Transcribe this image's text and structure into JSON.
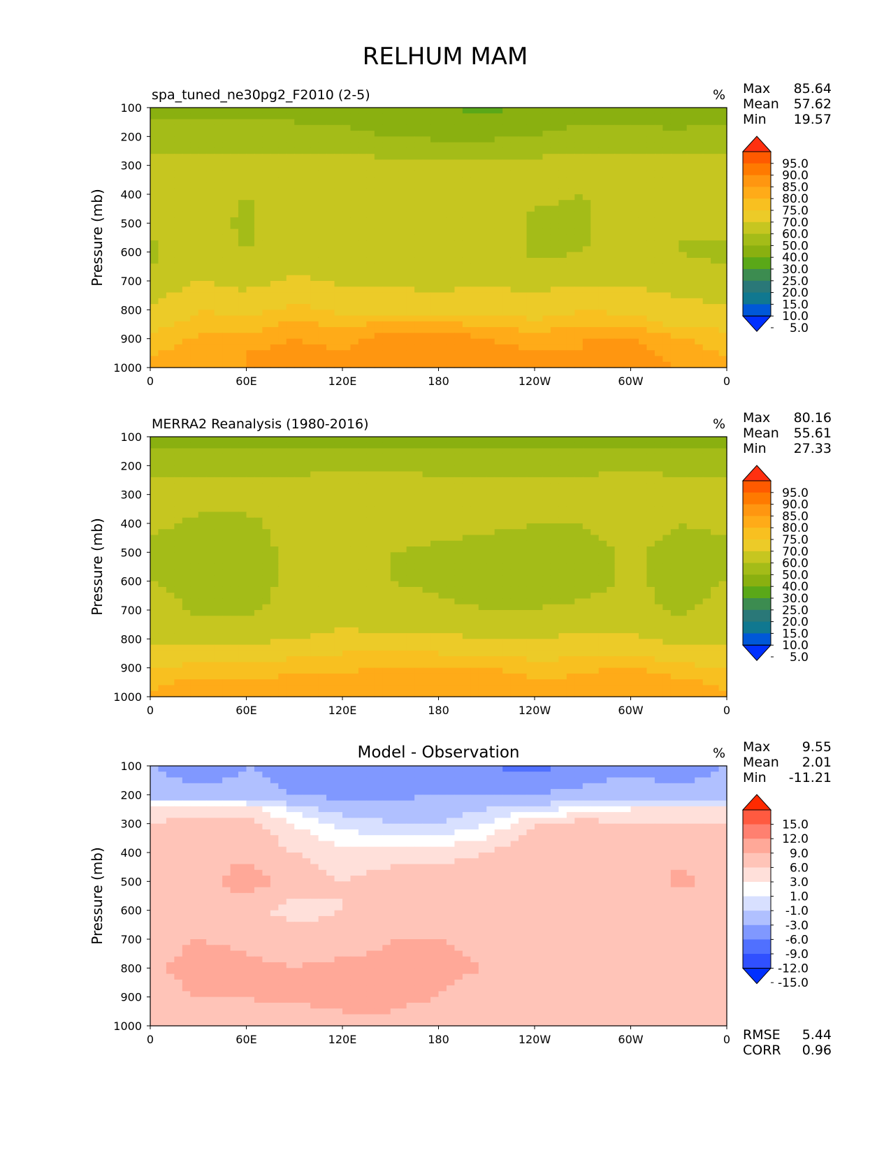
{
  "figure_title": "RELHUM MAM",
  "chart_data": [
    {
      "type": "heatmap",
      "title": "spa_tuned_ne30pg2_F2010 (2-5)",
      "units": "%",
      "ylabel": "Pressure (mb)",
      "xlabel": "",
      "x_ticks": [
        "0",
        "60E",
        "120E",
        "180",
        "120W",
        "60W",
        "0"
      ],
      "y_ticks": [
        "100",
        "200",
        "300",
        "400",
        "500",
        "600",
        "700",
        "800",
        "900",
        "1000"
      ],
      "x_range_deg": [
        0,
        360
      ],
      "y_range_mb": [
        100,
        1000
      ],
      "stats": [
        {
          "label": "Max",
          "value": "85.64"
        },
        {
          "label": "Mean",
          "value": "57.62"
        },
        {
          "label": "Min",
          "value": "19.57"
        }
      ],
      "colorbar": {
        "levels": [
          "95.0",
          "90.0",
          "85.0",
          "80.0",
          "75.0",
          "70.0",
          "60.0",
          "50.0",
          "40.0",
          "30.0",
          "25.0",
          "20.0",
          "15.0",
          "10.0",
          "5.0"
        ],
        "colors": [
          "#ff3010",
          "#ff5a00",
          "#ff7a00",
          "#ff9610",
          "#ffab18",
          "#f8c020",
          "#eccb28",
          "#c6c620",
          "#a4bc18",
          "#8ab010",
          "#5aa818",
          "#3c8c50",
          "#2a7878",
          "#107890",
          "#0058d8",
          "#0030ff"
        ]
      },
      "profile_mb": [
        100,
        200,
        300,
        400,
        500,
        600,
        700,
        800,
        850,
        900,
        950,
        1000
      ],
      "columns": [
        {
          "lon": 0,
          "rh": [
            36,
            44,
            54,
            58,
            52,
            48,
            52,
            62,
            68,
            72,
            74,
            76
          ]
        },
        {
          "lon": 30,
          "rh": [
            36,
            44,
            54,
            56,
            55,
            56,
            60,
            70,
            72,
            76,
            78,
            80
          ]
        },
        {
          "lon": 60,
          "rh": [
            36,
            44,
            54,
            50,
            48,
            50,
            56,
            68,
            72,
            76,
            80,
            80
          ]
        },
        {
          "lon": 90,
          "rh": [
            36,
            44,
            54,
            56,
            56,
            56,
            62,
            72,
            76,
            80,
            82,
            82
          ]
        },
        {
          "lon": 120,
          "rh": [
            36,
            42,
            54,
            56,
            56,
            56,
            58,
            68,
            74,
            78,
            80,
            82
          ]
        },
        {
          "lon": 150,
          "rh": [
            34,
            40,
            54,
            56,
            56,
            56,
            58,
            66,
            76,
            83,
            84,
            84
          ]
        },
        {
          "lon": 180,
          "rh": [
            30,
            38,
            54,
            56,
            56,
            56,
            56,
            68,
            76,
            85,
            84,
            84
          ]
        },
        {
          "lon": 210,
          "rh": [
            28,
            38,
            54,
            56,
            56,
            56,
            58,
            68,
            74,
            80,
            82,
            82
          ]
        },
        {
          "lon": 240,
          "rh": [
            32,
            40,
            54,
            52,
            48,
            48,
            56,
            66,
            72,
            78,
            80,
            80
          ]
        },
        {
          "lon": 270,
          "rh": [
            36,
            44,
            54,
            50,
            48,
            50,
            58,
            70,
            74,
            80,
            80,
            82
          ]
        },
        {
          "lon": 300,
          "rh": [
            32,
            44,
            54,
            56,
            56,
            56,
            58,
            68,
            74,
            80,
            82,
            82
          ]
        },
        {
          "lon": 330,
          "rh": [
            30,
            44,
            54,
            52,
            50,
            50,
            54,
            64,
            68,
            76,
            78,
            80
          ]
        },
        {
          "lon": 360,
          "rh": [
            36,
            44,
            54,
            58,
            52,
            48,
            52,
            62,
            68,
            72,
            74,
            76
          ]
        }
      ]
    },
    {
      "type": "heatmap",
      "title": "MERRA2 Reanalysis (1980-2016)",
      "units": "%",
      "ylabel": "Pressure (mb)",
      "xlabel": "",
      "x_ticks": [
        "0",
        "60E",
        "120E",
        "180",
        "120W",
        "60W",
        "0"
      ],
      "y_ticks": [
        "100",
        "200",
        "300",
        "400",
        "500",
        "600",
        "700",
        "800",
        "900",
        "1000"
      ],
      "x_range_deg": [
        0,
        360
      ],
      "y_range_mb": [
        100,
        1000
      ],
      "stats": [
        {
          "label": "Max",
          "value": "80.16"
        },
        {
          "label": "Mean",
          "value": "55.61"
        },
        {
          "label": "Min",
          "value": "27.33"
        }
      ],
      "colorbar": {
        "levels": [
          "95.0",
          "90.0",
          "85.0",
          "80.0",
          "75.0",
          "70.0",
          "60.0",
          "50.0",
          "40.0",
          "30.0",
          "25.0",
          "20.0",
          "15.0",
          "10.0",
          "5.0"
        ],
        "colors": [
          "#ff3010",
          "#ff5a00",
          "#ff7a00",
          "#ff9610",
          "#ffab18",
          "#f8c020",
          "#eccb28",
          "#c6c620",
          "#a4bc18",
          "#8ab010",
          "#5aa818",
          "#3c8c50",
          "#2a7878",
          "#107890",
          "#0058d8",
          "#0030ff"
        ]
      },
      "profile_mb": [
        100,
        200,
        300,
        400,
        500,
        600,
        700,
        800,
        850,
        900,
        950,
        1000
      ],
      "columns": [
        {
          "lon": 0,
          "rh": [
            36,
            48,
            54,
            52,
            48,
            50,
            54,
            58,
            64,
            70,
            74,
            76
          ]
        },
        {
          "lon": 30,
          "rh": [
            36,
            46,
            54,
            48,
            46,
            48,
            48,
            56,
            66,
            72,
            76,
            78
          ]
        },
        {
          "lon": 60,
          "rh": [
            36,
            46,
            54,
            48,
            46,
            46,
            48,
            56,
            66,
            72,
            76,
            76
          ]
        },
        {
          "lon": 90,
          "rh": [
            36,
            48,
            54,
            54,
            52,
            52,
            54,
            60,
            68,
            74,
            76,
            78
          ]
        },
        {
          "lon": 120,
          "rh": [
            36,
            48,
            56,
            56,
            56,
            56,
            56,
            62,
            70,
            74,
            76,
            78
          ]
        },
        {
          "lon": 150,
          "rh": [
            36,
            48,
            56,
            56,
            50,
            50,
            54,
            62,
            70,
            76,
            78,
            78
          ]
        },
        {
          "lon": 180,
          "rh": [
            34,
            48,
            54,
            54,
            48,
            48,
            52,
            62,
            70,
            76,
            78,
            78
          ]
        },
        {
          "lon": 210,
          "rh": [
            32,
            48,
            54,
            52,
            46,
            46,
            50,
            60,
            68,
            76,
            78,
            78
          ]
        },
        {
          "lon": 240,
          "rh": [
            34,
            48,
            54,
            50,
            46,
            46,
            50,
            60,
            68,
            72,
            76,
            78
          ]
        },
        {
          "lon": 270,
          "rh": [
            36,
            48,
            54,
            50,
            46,
            46,
            52,
            62,
            68,
            74,
            76,
            78
          ]
        },
        {
          "lon": 300,
          "rh": [
            36,
            48,
            56,
            56,
            52,
            52,
            54,
            62,
            70,
            76,
            78,
            78
          ]
        },
        {
          "lon": 330,
          "rh": [
            36,
            48,
            54,
            50,
            46,
            46,
            48,
            56,
            64,
            72,
            76,
            78
          ]
        },
        {
          "lon": 360,
          "rh": [
            36,
            48,
            54,
            52,
            48,
            50,
            54,
            58,
            64,
            70,
            74,
            76
          ]
        }
      ]
    },
    {
      "type": "heatmap",
      "title": "Model - Observation",
      "units": "%",
      "ylabel": "Pressure (mb)",
      "xlabel": "",
      "x_ticks": [
        "0",
        "60E",
        "120E",
        "180",
        "120W",
        "60W",
        "0"
      ],
      "y_ticks": [
        "100",
        "200",
        "300",
        "400",
        "500",
        "600",
        "700",
        "800",
        "900",
        "1000"
      ],
      "x_range_deg": [
        0,
        360
      ],
      "y_range_mb": [
        100,
        1000
      ],
      "stats": [
        {
          "label": "Max",
          "value": "9.55"
        },
        {
          "label": "Mean",
          "value": "2.01"
        },
        {
          "label": "Min",
          "value": "-11.21"
        }
      ],
      "extra_stats": [
        {
          "label": "RMSE",
          "value": "5.44"
        },
        {
          "label": "CORR",
          "value": "0.96"
        }
      ],
      "colorbar": {
        "levels": [
          "15.0",
          "12.0",
          "9.0",
          "6.0",
          "3.0",
          "1.0",
          "-1.0",
          "-3.0",
          "-6.0",
          "-9.0",
          "-12.0",
          "-15.0"
        ],
        "colors": [
          "#ff2a00",
          "#ff5a40",
          "#ff8070",
          "#ffa898",
          "#ffc4b8",
          "#ffe0da",
          "#ffffff",
          "#d8e0ff",
          "#b0c0ff",
          "#8098ff",
          "#5070ff",
          "#3050ff",
          "#0030ff"
        ]
      },
      "profile_mb": [
        100,
        200,
        250,
        300,
        400,
        500,
        600,
        700,
        800,
        900,
        950,
        1000
      ],
      "columns": [
        {
          "lon": 0,
          "diff": [
            -6,
            -4,
            1,
            3,
            4,
            4,
            3,
            4,
            5,
            4,
            4,
            3
          ]
        },
        {
          "lon": 30,
          "diff": [
            -8,
            -5,
            2,
            4,
            5,
            4,
            4,
            6,
            8,
            6,
            5,
            4
          ]
        },
        {
          "lon": 60,
          "diff": [
            -6,
            -5,
            2,
            4,
            5,
            8,
            4,
            5,
            7,
            6,
            5,
            3
          ]
        },
        {
          "lon": 90,
          "diff": [
            -7,
            -6,
            -2,
            1,
            3,
            4,
            2,
            4,
            6,
            7,
            5,
            4
          ]
        },
        {
          "lon": 120,
          "diff": [
            -8,
            -7,
            -4,
            -2,
            2,
            3,
            3,
            4,
            7,
            7,
            6,
            4
          ]
        },
        {
          "lon": 150,
          "diff": [
            -9,
            -7,
            -4,
            -3,
            2,
            4,
            5,
            6,
            7,
            7,
            6,
            5
          ]
        },
        {
          "lon": 180,
          "diff": [
            -8,
            -6,
            -4,
            -3,
            2,
            4,
            5,
            6,
            7,
            6,
            5,
            4
          ]
        },
        {
          "lon": 210,
          "diff": [
            -9,
            -6,
            -3,
            -1,
            3,
            5,
            5,
            5,
            6,
            3,
            3,
            3
          ]
        },
        {
          "lon": 240,
          "diff": [
            -10,
            -6,
            -2,
            3,
            5,
            5,
            5,
            6,
            6,
            3,
            3,
            3
          ]
        },
        {
          "lon": 270,
          "diff": [
            -8,
            -5,
            0,
            4,
            5,
            5,
            5,
            5,
            5,
            3,
            3,
            3
          ]
        },
        {
          "lon": 300,
          "diff": [
            -7,
            -4,
            1,
            3,
            4,
            3,
            4,
            5,
            6,
            5,
            4,
            4
          ]
        },
        {
          "lon": 330,
          "diff": [
            -8,
            -5,
            1,
            3,
            5,
            7,
            4,
            4,
            5,
            5,
            4,
            3
          ]
        },
        {
          "lon": 360,
          "diff": [
            -6,
            -4,
            1,
            3,
            4,
            4,
            3,
            4,
            5,
            4,
            4,
            3
          ]
        }
      ]
    }
  ]
}
